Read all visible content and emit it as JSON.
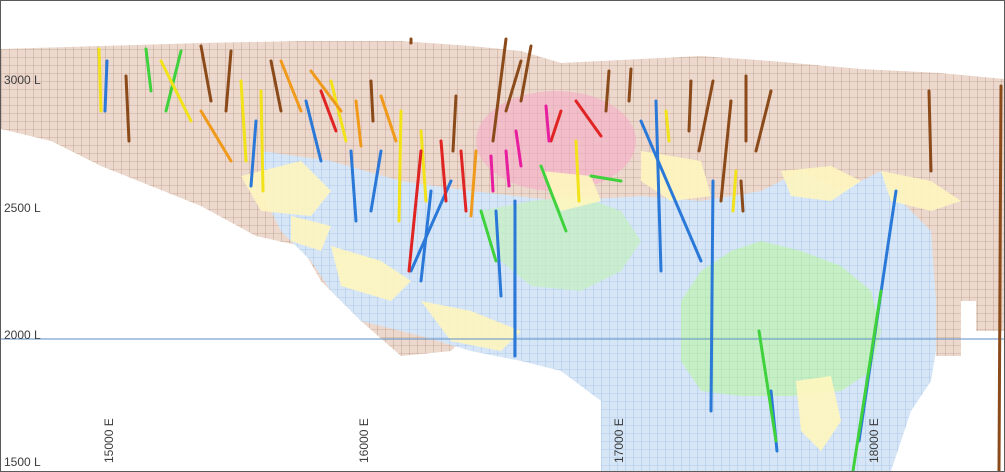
{
  "levels": [
    {
      "id": "3000",
      "label": "3000 L"
    },
    {
      "id": "2500",
      "label": "2500 L"
    },
    {
      "id": "2000",
      "label": "2000 L"
    },
    {
      "id": "1500",
      "label": "1500 L"
    }
  ],
  "eastings": [
    {
      "id": "15000",
      "label": "15000 E"
    },
    {
      "id": "16000",
      "label": "16000 E"
    },
    {
      "id": "17000",
      "label": "17000 E"
    },
    {
      "id": "18000",
      "label": "18000 E"
    }
  ],
  "colors": {
    "block_outline": "#9a7560",
    "block_fill_upper": "#ecd8cc",
    "block_fill_lower_blue": "#d6e6f6",
    "grid_blue": "#8fb2dc",
    "grid_brown": "#a98472",
    "yellow_zone": "#fff6bf",
    "green_zone": "#bff0b8",
    "magenta_zone": "#f6a9c9",
    "level_line": "#5b8fc7",
    "drill_brown": "#8b4a1a",
    "drill_blue": "#2a78d8",
    "drill_green": "#3fd23c",
    "drill_yellow": "#f2e21a",
    "drill_orange": "#f09a1c",
    "drill_red": "#e02424",
    "drill_magenta": "#e81ea0"
  }
}
